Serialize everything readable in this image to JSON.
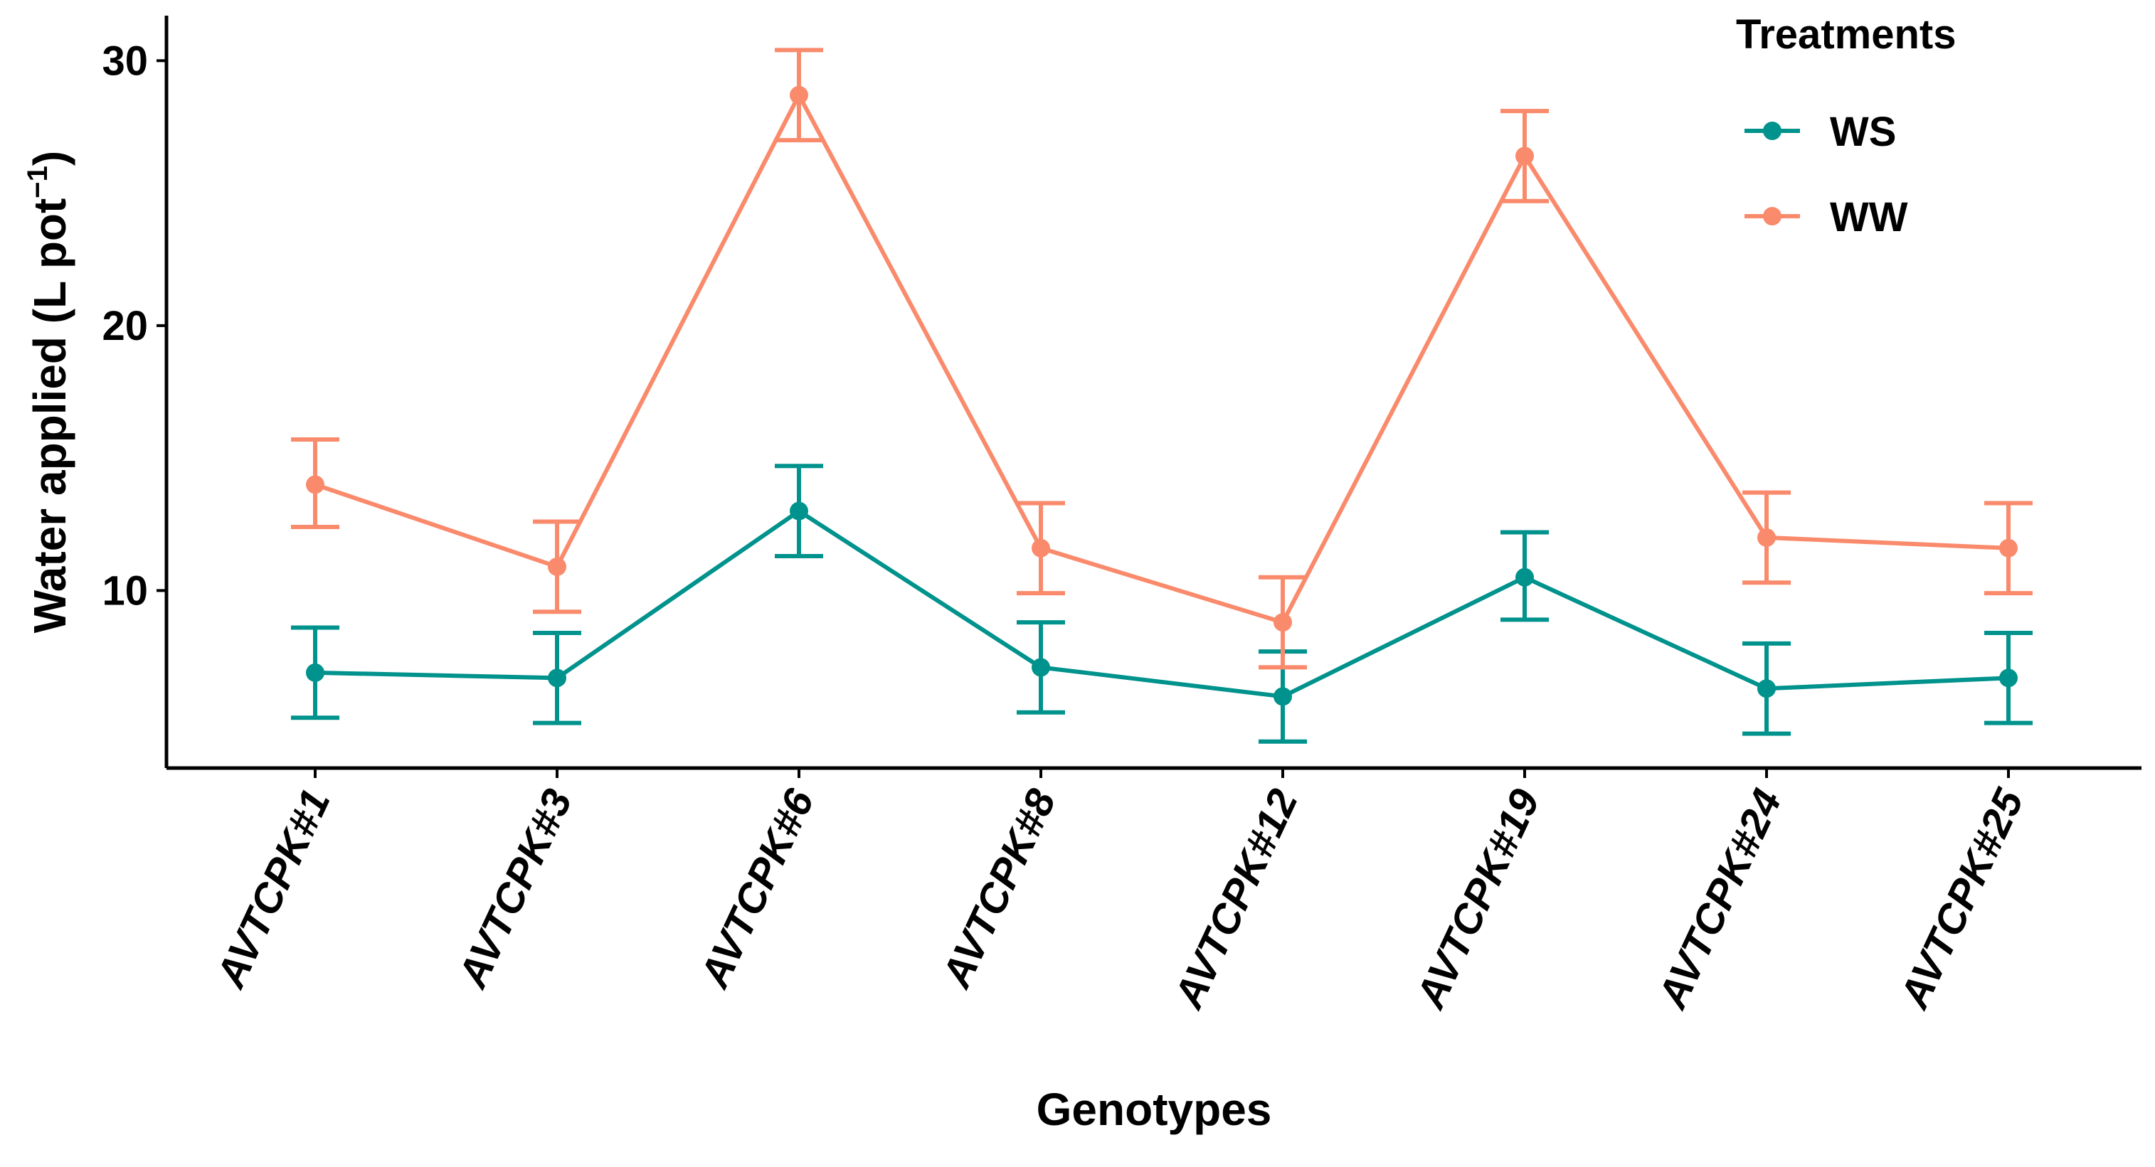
{
  "chart_data": {
    "type": "line",
    "title": "",
    "xlabel": "Genotypes",
    "ylabel": "Water applied (L pot",
    "ylabel_superscript": "−1",
    "ylabel_close": ")",
    "categories": [
      "AVTCPK#1",
      "AVTCPK#3",
      "AVTCPK#6",
      "AVTCPK#8",
      "AVTCPK#12",
      "AVTCPK#19",
      "AVTCPK#24",
      "AVTCPK#25"
    ],
    "ylim": [
      3.3,
      31.7
    ],
    "yticks": [
      10,
      20,
      30
    ],
    "legend": {
      "title": "Treatments",
      "position": "top-right"
    },
    "series": [
      {
        "name": "WS",
        "color": "#00928C",
        "values": [
          6.9,
          6.7,
          13.0,
          7.1,
          6.0,
          10.5,
          6.3,
          6.7
        ],
        "error_low": [
          5.2,
          5.0,
          11.3,
          5.4,
          4.3,
          8.9,
          4.6,
          5.0
        ],
        "error_high": [
          8.6,
          8.4,
          14.7,
          8.8,
          7.7,
          12.2,
          8.0,
          8.4
        ]
      },
      {
        "name": "WW",
        "color": "#FA8A6C",
        "values": [
          14.0,
          10.9,
          28.7,
          11.6,
          8.8,
          26.4,
          12.0,
          11.6
        ],
        "error_low": [
          12.4,
          9.2,
          27.0,
          9.9,
          7.1,
          24.7,
          10.3,
          9.9
        ],
        "error_high": [
          15.7,
          12.6,
          30.4,
          13.3,
          10.5,
          28.1,
          13.7,
          13.3
        ]
      }
    ]
  }
}
